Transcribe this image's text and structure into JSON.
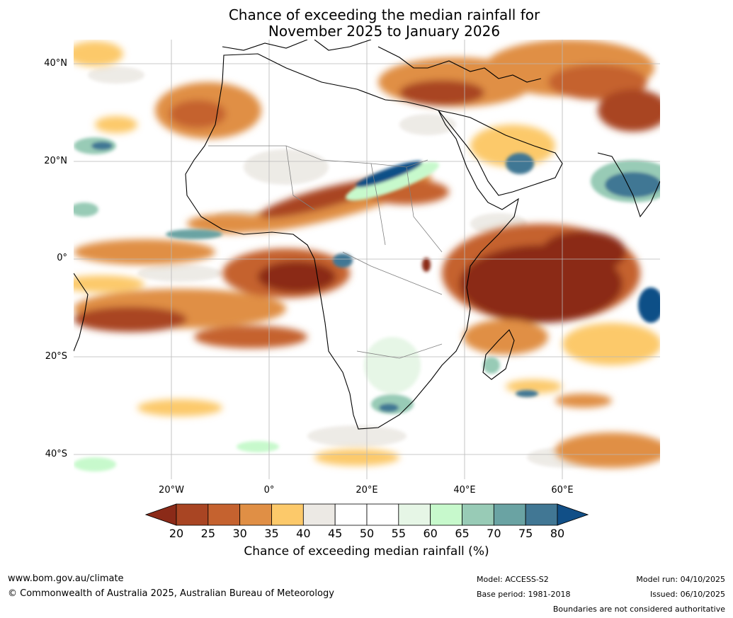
{
  "title": {
    "line1": "Chance of exceeding the median rainfall for",
    "line2": "November 2025 to January 2026"
  },
  "map": {
    "lat_labels": [
      "40°N",
      "20°N",
      "0°",
      "20°S",
      "40°S"
    ],
    "lon_labels": [
      "20°W",
      "0°",
      "20°E",
      "40°E",
      "60°E"
    ]
  },
  "colorbar": {
    "ticks": [
      "20",
      "25",
      "30",
      "35",
      "40",
      "45",
      "50",
      "55",
      "60",
      "65",
      "70",
      "75",
      "80"
    ],
    "colors": [
      "#8b2a18",
      "#a94523",
      "#c5622f",
      "#e08f45",
      "#fcc96a",
      "#ece9e4",
      "#ffffff",
      "#ffffff",
      "#e6f6e6",
      "#c7f9cc",
      "#98cbb6",
      "#6aa3a3",
      "#417794",
      "#114f87"
    ],
    "label": "Chance of exceeding median rainfall (%)"
  },
  "footer": {
    "website": "www.bom.gov.au/climate",
    "copyright": "© Commonwealth of Australia 2025, Australian Bureau of Meteorology",
    "model": "Model: ACCESS-S2",
    "base_period": "Base period: 1981-2018",
    "model_run": "Model run: 04/10/2025",
    "issued": "Issued: 06/10/2025",
    "disclaimer": "Boundaries are not considered authoritative"
  }
}
